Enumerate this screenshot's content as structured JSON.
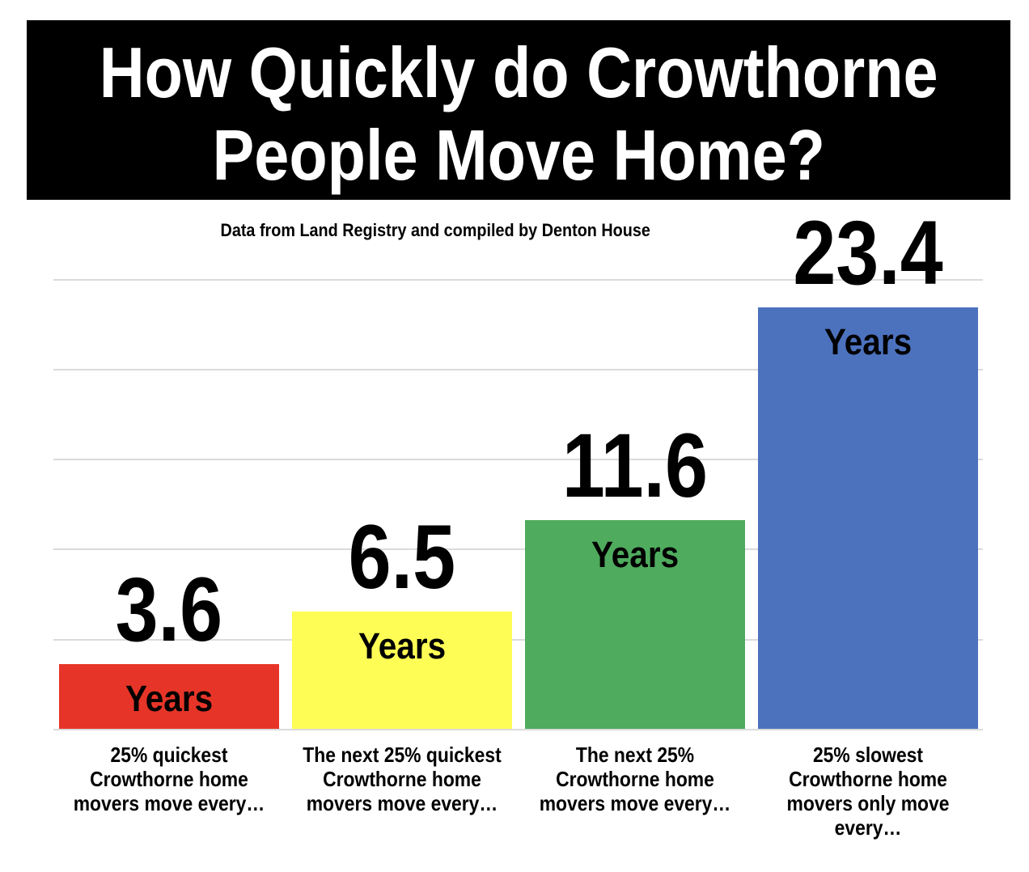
{
  "header": {
    "title": "How Quickly do Crowthorne People Move Home?",
    "title_lines": [
      "How Quickly do Crowthorne",
      "People Move Home?"
    ]
  },
  "subtitle": "Data from Land Registry and compiled by Denton House",
  "colors": {
    "header_bg": "#000000",
    "header_text": "#ffffff",
    "gridline": "#dbdbdb",
    "text": "#000000",
    "background": "#ffffff"
  },
  "chart_data": {
    "type": "bar",
    "title": "How Quickly do Crowthorne People Move Home?",
    "subtitle": "Data from Land Registry and compiled by Denton House",
    "unit": "Years",
    "categories": [
      "25% quickest Crowthorne home movers move every…",
      "The next 25% quickest Crowthorne home movers move every…",
      "The next 25% Crowthorne home movers move every…",
      "25% slowest Crowthorne home movers only move every…"
    ],
    "values": [
      3.6,
      6.5,
      11.6,
      23.4
    ],
    "value_labels": [
      "3.6",
      "6.5",
      "11.6",
      "23.4"
    ],
    "bar_colors": [
      "#e63528",
      "#fdfd55",
      "#4fab5e",
      "#4c72be"
    ],
    "ylim": [
      0,
      25
    ],
    "gridline_interval_years": 5,
    "grid": true,
    "legend_position": "none"
  },
  "bars": [
    {
      "value_label": "3.6",
      "unit_label": "Years",
      "color": "#e63528",
      "category_lines": [
        "25% quickest",
        "Crowthorne home",
        "movers move every…"
      ]
    },
    {
      "value_label": "6.5",
      "unit_label": "Years",
      "color": "#fdfd55",
      "category_lines": [
        "The next 25% quickest",
        "Crowthorne home",
        "movers move every…"
      ]
    },
    {
      "value_label": "11.6",
      "unit_label": "Years",
      "color": "#4fab5e",
      "category_lines": [
        "The next 25%",
        "Crowthorne home",
        "movers move every…"
      ]
    },
    {
      "value_label": "23.4",
      "unit_label": "Years",
      "color": "#4c72be",
      "category_lines": [
        "25% slowest",
        "Crowthorne home",
        "movers only move",
        "every…"
      ]
    }
  ]
}
